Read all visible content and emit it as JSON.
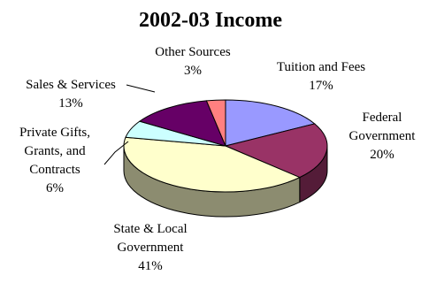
{
  "chart_data": {
    "type": "pie",
    "title": "2002-03 Income",
    "slices": [
      {
        "label": "Tuition and Fees",
        "value": 17,
        "value_label": "17%",
        "color": "#9999ff"
      },
      {
        "label": "Federal Government",
        "value": 20,
        "value_label": "20%",
        "color": "#993366"
      },
      {
        "label": "State & Local Government",
        "value": 41,
        "value_label": "41%",
        "color": "#ffffcc"
      },
      {
        "label": "Private Gifts, Grants, and Contracts",
        "value": 6,
        "value_label": "6%",
        "color": "#ccffff"
      },
      {
        "label": "Sales & Services",
        "value": 13,
        "value_label": "13%",
        "color": "#660066"
      },
      {
        "label": "Other Sources",
        "value": 3,
        "value_label": "3%",
        "color": "#ff8080"
      }
    ],
    "label_lines": {
      "Tuition and Fees": [
        "Tuition and Fees"
      ],
      "Federal Government": [
        "Federal",
        "Government"
      ],
      "State & Local Government": [
        "State & Local",
        "Government"
      ],
      "Private Gifts, Grants, and Contracts": [
        "Private Gifts,",
        "Grants, and",
        "Contracts"
      ],
      "Sales & Services": [
        "Sales & Services"
      ],
      "Other Sources": [
        "Other Sources"
      ]
    },
    "style": "3d"
  }
}
